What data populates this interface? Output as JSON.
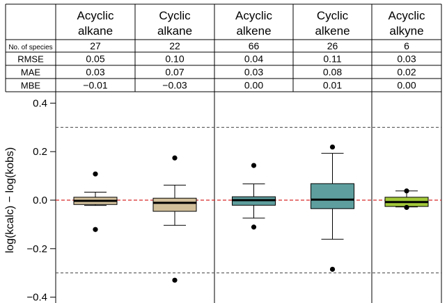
{
  "chart_data": {
    "type": "box",
    "groups": [
      {
        "label_line1": "Acyclic",
        "label_line2": "alkane",
        "n_species": "27",
        "rmse": "0.05",
        "mae": "0.03",
        "mbe": "−0.01",
        "color": "#d2c09b",
        "box": {
          "whisker_low": -0.022,
          "q1": -0.018,
          "median": -0.003,
          "q3": 0.012,
          "whisker_high": 0.033
        },
        "outliers": [
          0.108,
          -0.121
        ]
      },
      {
        "label_line1": "Cyclic",
        "label_line2": "alkane",
        "n_species": "22",
        "rmse": "0.10",
        "mae": "0.07",
        "mbe": "−0.03",
        "color": "#d2c09b",
        "box": {
          "whisker_low": -0.104,
          "q1": -0.046,
          "median": -0.011,
          "q3": 0.008,
          "whisker_high": 0.062
        },
        "outliers": [
          0.174,
          -0.33
        ]
      },
      {
        "label_line1": "Acyclic",
        "label_line2": "alkene",
        "n_species": "66",
        "rmse": "0.04",
        "mae": "0.03",
        "mbe": "0.00",
        "color": "#5e9e9e",
        "box": {
          "whisker_low": -0.074,
          "q1": -0.021,
          "median": 0.0,
          "q3": 0.014,
          "whisker_high": 0.067
        },
        "outliers": [
          0.143,
          -0.111
        ]
      },
      {
        "label_line1": "Cyclic",
        "label_line2": "alkene",
        "n_species": "26",
        "rmse": "0.11",
        "mae": "0.08",
        "mbe": "0.01",
        "color": "#5e9e9e",
        "box": {
          "whisker_low": -0.161,
          "q1": -0.035,
          "median": 0.002,
          "q3": 0.068,
          "whisker_high": 0.193
        },
        "outliers": [
          0.219,
          -0.285
        ]
      },
      {
        "label_line1": "Acyclic",
        "label_line2": "alkyne",
        "n_species": "6",
        "rmse": "0.03",
        "mae": "0.02",
        "mbe": "0.00",
        "color": "#a3c93a",
        "box": {
          "whisker_low": -0.028,
          "q1": -0.026,
          "median": -0.008,
          "q3": 0.012,
          "whisker_high": 0.038
        },
        "outliers": [
          0.038,
          -0.03
        ]
      }
    ],
    "row_labels": [
      "No. of species",
      "RMSE",
      "MAE",
      "MBE"
    ],
    "ylabel": "log(kcalc) − log(kobs)",
    "yticks": [
      0.4,
      0.2,
      0.0,
      -0.2,
      -0.4
    ],
    "ytick_labels": [
      "0.4",
      "0.2",
      "0.0",
      "−0.2",
      "−0.4"
    ],
    "ylim": [
      -0.42,
      0.42
    ],
    "reference_lines": [
      {
        "value": 0.0,
        "style": "dashed",
        "color": "#d62728"
      },
      {
        "value": 0.3,
        "style": "dashed",
        "color": "#555555"
      },
      {
        "value": -0.3,
        "style": "dashed",
        "color": "#555555"
      }
    ],
    "group_separators_after": [
      1,
      3
    ]
  }
}
